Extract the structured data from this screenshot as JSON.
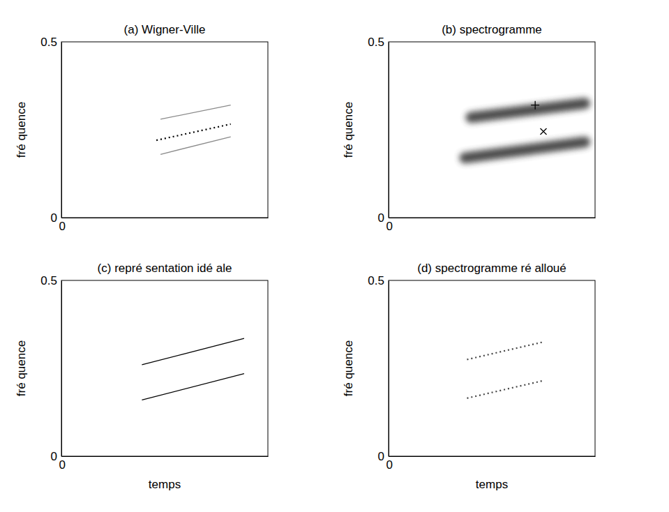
{
  "chart_data": [
    {
      "type": "line",
      "title": "(a) Wigner-Ville",
      "y_label": "fré quence",
      "xlim": [
        0,
        1
      ],
      "ylim": [
        0,
        0.5
      ],
      "xticks": [
        0
      ],
      "yticks": [
        0,
        0.5
      ],
      "series": [
        {
          "x": [
            0.48,
            0.82
          ],
          "values": [
            0.18,
            0.23
          ],
          "color": "#8a8a8a",
          "line_style": "solid"
        },
        {
          "x": [
            0.48,
            0.82
          ],
          "values": [
            0.28,
            0.32
          ],
          "color": "#8a8a8a",
          "line_style": "solid"
        },
        {
          "x": [
            0.46,
            0.82
          ],
          "values": [
            0.22,
            0.266
          ],
          "color": "#000000",
          "line_style": "dotted"
        }
      ]
    },
    {
      "type": "line",
      "title": "(b) spectrogramme",
      "y_label": "fré quence",
      "xlim": [
        0,
        1
      ],
      "ylim": [
        0,
        0.5
      ],
      "xticks": [
        0
      ],
      "yticks": [
        0,
        0.5
      ],
      "series": [
        {
          "x": [
            0.37,
            0.95
          ],
          "values": [
            0.17,
            0.215
          ],
          "color": "#3a3a3a",
          "line_style": "smeared"
        },
        {
          "x": [
            0.4,
            0.95
          ],
          "values": [
            0.285,
            0.325
          ],
          "color": "#3a3a3a",
          "line_style": "smeared"
        },
        {
          "type": "scatter",
          "x": [
            0.71
          ],
          "values": [
            0.32
          ],
          "color": "#000000",
          "marker": "plus"
        },
        {
          "type": "scatter",
          "x": [
            0.75
          ],
          "values": [
            0.245
          ],
          "color": "#000000",
          "marker": "cross"
        }
      ]
    },
    {
      "type": "line",
      "title": "(c) repré sentation idé ale",
      "x_label": "temps",
      "y_label": "fré quence",
      "xlim": [
        0,
        1
      ],
      "ylim": [
        0,
        0.5
      ],
      "xticks": [
        0
      ],
      "yticks": [
        0,
        0.5
      ],
      "series": [
        {
          "x": [
            0.39,
            0.885
          ],
          "values": [
            0.16,
            0.235
          ],
          "color": "#000000",
          "line_style": "solid"
        },
        {
          "x": [
            0.39,
            0.885
          ],
          "values": [
            0.26,
            0.335
          ],
          "color": "#000000",
          "line_style": "solid"
        }
      ]
    },
    {
      "type": "line",
      "title": "(d) spectrogramme ré alloué",
      "x_label": "temps",
      "y_label": "fré quence",
      "xlim": [
        0,
        1
      ],
      "ylim": [
        0,
        0.5
      ],
      "xticks": [
        0
      ],
      "yticks": [
        0,
        0.5
      ],
      "series": [
        {
          "x": [
            0.38,
            0.75
          ],
          "values": [
            0.165,
            0.215
          ],
          "color": "#444444",
          "line_style": "dotted"
        },
        {
          "x": [
            0.38,
            0.75
          ],
          "values": [
            0.275,
            0.325
          ],
          "color": "#444444",
          "line_style": "dotted"
        }
      ]
    }
  ]
}
